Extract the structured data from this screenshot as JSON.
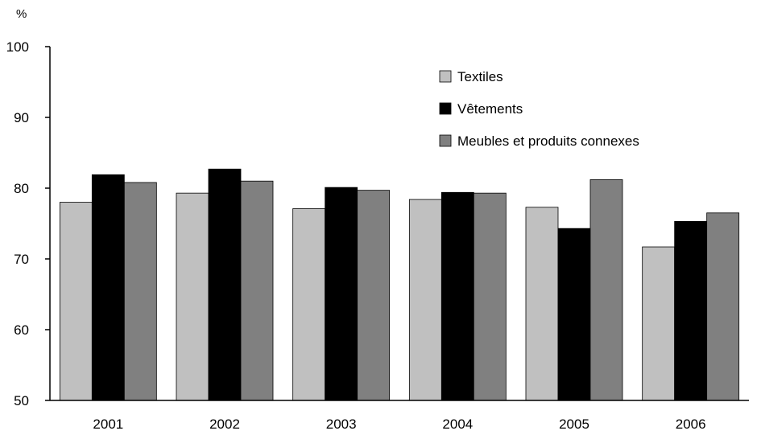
{
  "chart_data": {
    "type": "bar",
    "ylabel": "%",
    "ylim": [
      50,
      100
    ],
    "yticks": [
      50,
      60,
      70,
      80,
      90,
      100
    ],
    "categories": [
      "2001",
      "2002",
      "2003",
      "2004",
      "2005",
      "2006"
    ],
    "series": [
      {
        "name": "Textiles",
        "color": "#c0c0c0",
        "values": [
          78.0,
          79.3,
          77.1,
          78.4,
          77.3,
          71.7
        ]
      },
      {
        "name": "Vêtements",
        "color": "#000000",
        "values": [
          81.9,
          82.7,
          80.1,
          79.4,
          74.3,
          75.3
        ]
      },
      {
        "name": "Meubles et produits connexes",
        "color": "#808080",
        "values": [
          80.8,
          81.0,
          79.7,
          79.3,
          81.2,
          76.5
        ]
      }
    ],
    "legend_position": "top-right",
    "grid": false
  }
}
